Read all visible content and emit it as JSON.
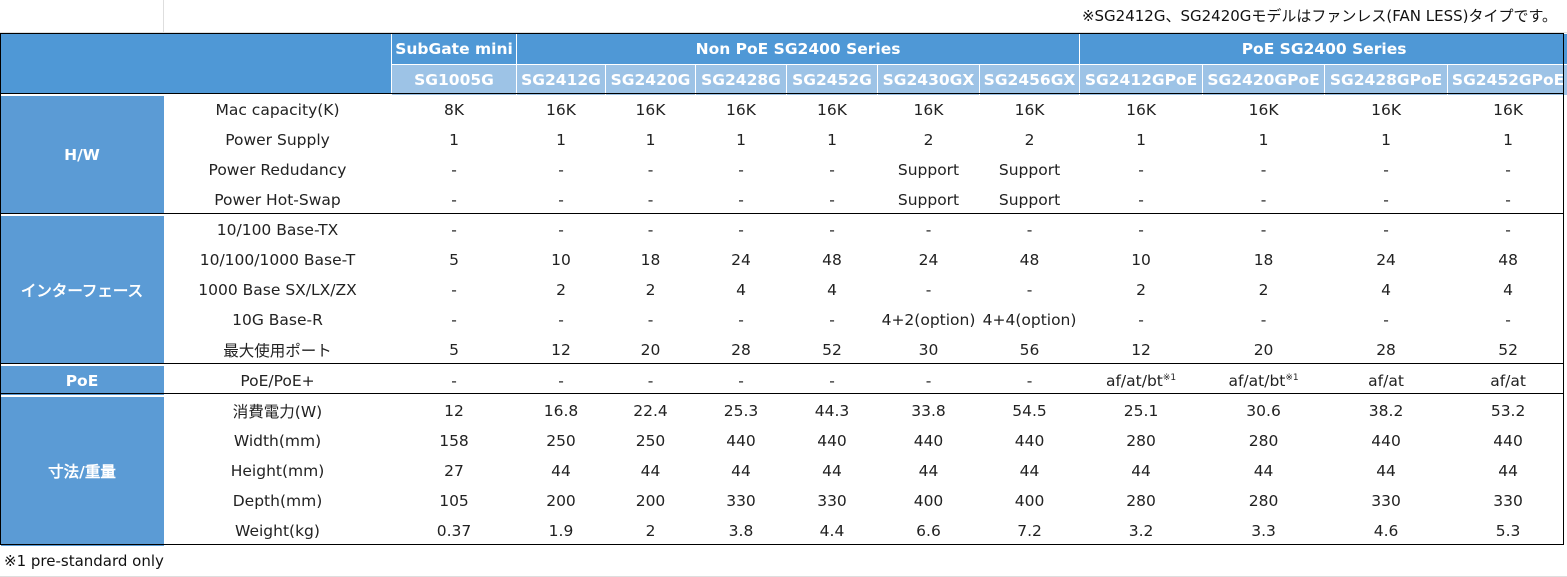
{
  "top_note": "※SG2412G、SG2420Gモデルはファンレス(FAN LESS)タイプです。",
  "footnote": "※1 pre-standard only",
  "header": {
    "groups": [
      {
        "label": "SubGate mini",
        "span": 1
      },
      {
        "label": "Non PoE SG2400 Series",
        "span": 6
      },
      {
        "label": "PoE SG2400 Series",
        "span": 4
      }
    ],
    "models": [
      "SG1005G",
      "SG2412G",
      "SG2420G",
      "SG2428G",
      "SG2452G",
      "SG2430GX",
      "SG2456GX",
      "SG2412GPoE",
      "SG2420GPoE",
      "SG2428GPoE",
      "SG2452GPoE"
    ]
  },
  "categories": [
    {
      "name": "H/W",
      "rows": [
        {
          "label": "Mac capacity(K)",
          "values": [
            "8K",
            "16K",
            "16K",
            "16K",
            "16K",
            "16K",
            "16K",
            "16K",
            "16K",
            "16K",
            "16K"
          ]
        },
        {
          "label": "Power Supply",
          "values": [
            "1",
            "1",
            "1",
            "1",
            "1",
            "2",
            "2",
            "1",
            "1",
            "1",
            "1"
          ]
        },
        {
          "label": "Power Redudancy",
          "values": [
            "-",
            "-",
            "-",
            "-",
            "-",
            "Support",
            "Support",
            "-",
            "-",
            "-",
            "-"
          ]
        },
        {
          "label": "Power Hot-Swap",
          "values": [
            "-",
            "-",
            "-",
            "-",
            "-",
            "Support",
            "Support",
            "-",
            "-",
            "-",
            "-"
          ]
        }
      ]
    },
    {
      "name": "インターフェース",
      "rows": [
        {
          "label": "10/100 Base-TX",
          "values": [
            "-",
            "-",
            "-",
            "-",
            "-",
            "-",
            "-",
            "-",
            "-",
            "-",
            "-"
          ]
        },
        {
          "label": "10/100/1000 Base-T",
          "values": [
            "5",
            "10",
            "18",
            "24",
            "48",
            "24",
            "48",
            "10",
            "18",
            "24",
            "48"
          ]
        },
        {
          "label": "1000 Base SX/LX/ZX",
          "values": [
            "-",
            "2",
            "2",
            "4",
            "4",
            "-",
            "-",
            "2",
            "2",
            "4",
            "4"
          ]
        },
        {
          "label": "10G Base-R",
          "values": [
            "-",
            "-",
            "-",
            "-",
            "-",
            "4+2(option)",
            "4+4(option)",
            "-",
            "-",
            "-",
            "-"
          ]
        },
        {
          "label": "最大使用ポート",
          "values": [
            "5",
            "12",
            "20",
            "28",
            "52",
            "30",
            "56",
            "12",
            "20",
            "28",
            "52"
          ]
        }
      ]
    },
    {
      "name": "PoE",
      "rows": [
        {
          "label": "PoE/PoE+",
          "values": [
            "-",
            "-",
            "-",
            "-",
            "-",
            "-",
            "-",
            "af/at/bt",
            "af/at/bt",
            "af/at",
            "af/at"
          ],
          "sups": [
            "",
            "",
            "",
            "",
            "",
            "",
            "",
            "※1",
            "※1",
            "",
            ""
          ]
        }
      ]
    },
    {
      "name": "寸法/重量",
      "rows": [
        {
          "label": "消費電力(W)",
          "values": [
            "12",
            "16.8",
            "22.4",
            "25.3",
            "44.3",
            "33.8",
            "54.5",
            "25.1",
            "30.6",
            "38.2",
            "53.2"
          ]
        },
        {
          "label": "Width(mm)",
          "values": [
            "158",
            "250",
            "250",
            "440",
            "440",
            "440",
            "440",
            "280",
            "280",
            "440",
            "440"
          ]
        },
        {
          "label": "Height(mm)",
          "values": [
            "27",
            "44",
            "44",
            "44",
            "44",
            "44",
            "44",
            "44",
            "44",
            "44",
            "44"
          ]
        },
        {
          "label": "Depth(mm)",
          "values": [
            "105",
            "200",
            "200",
            "330",
            "330",
            "400",
            "400",
            "280",
            "280",
            "330",
            "330"
          ]
        },
        {
          "label": "Weight(kg)",
          "values": [
            "0.37",
            "1.9",
            "2",
            "3.8",
            "4.4",
            "6.6",
            "7.2",
            "3.2",
            "3.3",
            "4.6",
            "5.3"
          ]
        }
      ]
    }
  ]
}
